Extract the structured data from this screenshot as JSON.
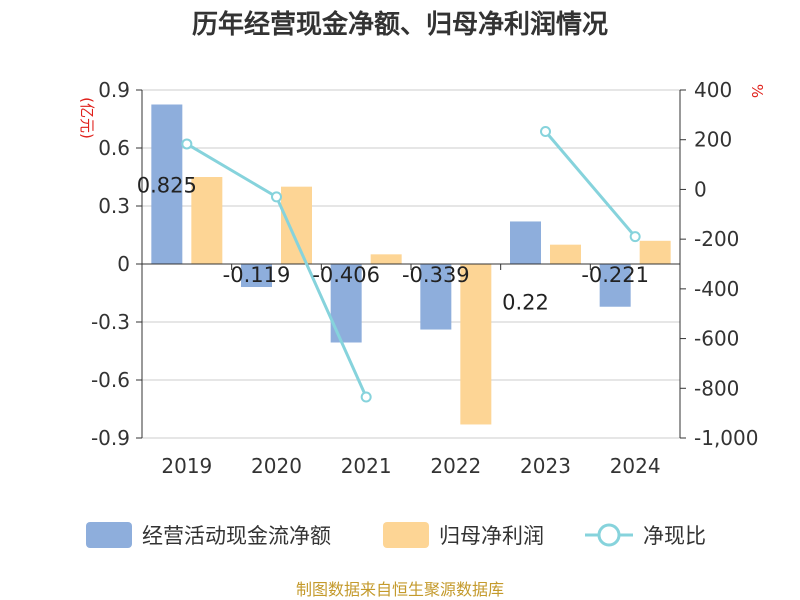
{
  "chart_data": {
    "type": "bar+line",
    "title": "历年经营现金净额、归母净利润情况",
    "categories": [
      "2019",
      "2020",
      "2021",
      "2022",
      "2023",
      "2024"
    ],
    "series": [
      {
        "name": "经营活动现金流净额",
        "type": "bar",
        "axis": "left",
        "color": "#8eaedc",
        "values": [
          0.825,
          -0.119,
          -0.406,
          -0.339,
          0.22,
          -0.221
        ],
        "labels": [
          "0.825",
          "-0.119",
          "-0.406",
          "-0.339",
          "0.22",
          "-0.221"
        ]
      },
      {
        "name": "归母净利润",
        "type": "bar",
        "axis": "left",
        "color": "#fdd595",
        "values": [
          0.45,
          0.4,
          0.05,
          -0.83,
          0.1,
          0.12
        ]
      },
      {
        "name": "净现比",
        "type": "line",
        "axis": "right",
        "color": "#86d3dc",
        "values": [
          183,
          -30,
          -835,
          null,
          233,
          -190
        ]
      }
    ],
    "y_left": {
      "unit": "(亿元)",
      "min": -0.9,
      "max": 0.9,
      "ticks": [
        0.9,
        0.6,
        0.3,
        0,
        -0.3,
        -0.6,
        -0.9
      ],
      "tick_labels": [
        "0.9",
        "0.6",
        "0.3",
        "0",
        "-0.3",
        "-0.6",
        "-0.9"
      ]
    },
    "y_right": {
      "unit": "%",
      "min": -1000,
      "max": 400,
      "ticks": [
        400,
        200,
        0,
        -200,
        -400,
        -600,
        -800,
        -1000
      ],
      "tick_labels": [
        "400",
        "200",
        "0",
        "-200",
        "-400",
        "-600",
        "-800",
        "-1,000"
      ]
    },
    "legend": [
      "经营活动现金流净额",
      "归母净利润",
      "净现比"
    ],
    "legend_position": "bottom",
    "grid": true
  },
  "source": "制图数据来自恒生聚源数据库"
}
